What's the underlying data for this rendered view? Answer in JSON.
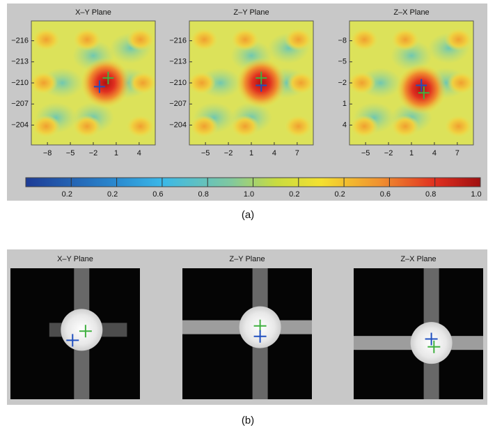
{
  "figure": {
    "panel_a": {
      "label": "(a)",
      "plots": [
        {
          "title": "X–Y Plane",
          "xticks": [
            "−8",
            "−5",
            "−2",
            "1",
            "4"
          ],
          "yticks": [
            "−216",
            "−213",
            "−210",
            "−207",
            "−204"
          ]
        },
        {
          "title": "Z–Y Plane",
          "xticks": [
            "−5",
            "−2",
            "1",
            "4",
            "7"
          ],
          "yticks": [
            "−216",
            "−213",
            "−210",
            "−207",
            "−204"
          ]
        },
        {
          "title": "Z–X Plane",
          "xticks": [
            "−5",
            "−2",
            "1",
            "4",
            "7"
          ],
          "yticks": [
            "−8",
            "−5",
            "−2",
            "1",
            "4"
          ]
        }
      ],
      "colorbar": [
        "0.2",
        "0.2",
        "0.6",
        "0.8",
        "1.0",
        "0.2",
        "0.2",
        "0.6",
        "0.8",
        "1.0"
      ]
    },
    "panel_b": {
      "label": "(b)",
      "plots": [
        {
          "title": "X–Y Plane"
        },
        {
          "title": "Z–Y Plane"
        },
        {
          "title": "Z–X Plane"
        }
      ]
    }
  }
}
